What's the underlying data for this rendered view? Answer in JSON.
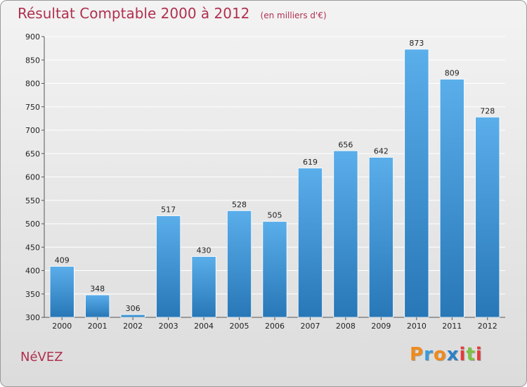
{
  "header": {
    "title": "Résultat Comptable 2000 à 2012",
    "unit": "(en milliers d'€)"
  },
  "footer": {
    "city": "NéVEZ",
    "logo": "Proxiti"
  },
  "colors": {
    "bar_top": "#5aaeea",
    "bar_bottom": "#2877b7",
    "title": "#b0304f",
    "grid": "#ffffff"
  },
  "chart_data": {
    "type": "bar",
    "title": "Résultat Comptable 2000 à 2012",
    "subtitle": "(en milliers d'€)",
    "xlabel": "",
    "ylabel": "",
    "categories": [
      "2000",
      "2001",
      "2002",
      "2003",
      "2004",
      "2005",
      "2006",
      "2007",
      "2008",
      "2009",
      "2010",
      "2011",
      "2012"
    ],
    "values": [
      409,
      348,
      306,
      517,
      430,
      528,
      505,
      619,
      656,
      642,
      873,
      809,
      728
    ],
    "ylim": [
      300,
      900
    ],
    "yticks": [
      300,
      350,
      400,
      450,
      500,
      550,
      600,
      650,
      700,
      750,
      800,
      850,
      900
    ],
    "grid": true,
    "legend": "none"
  }
}
